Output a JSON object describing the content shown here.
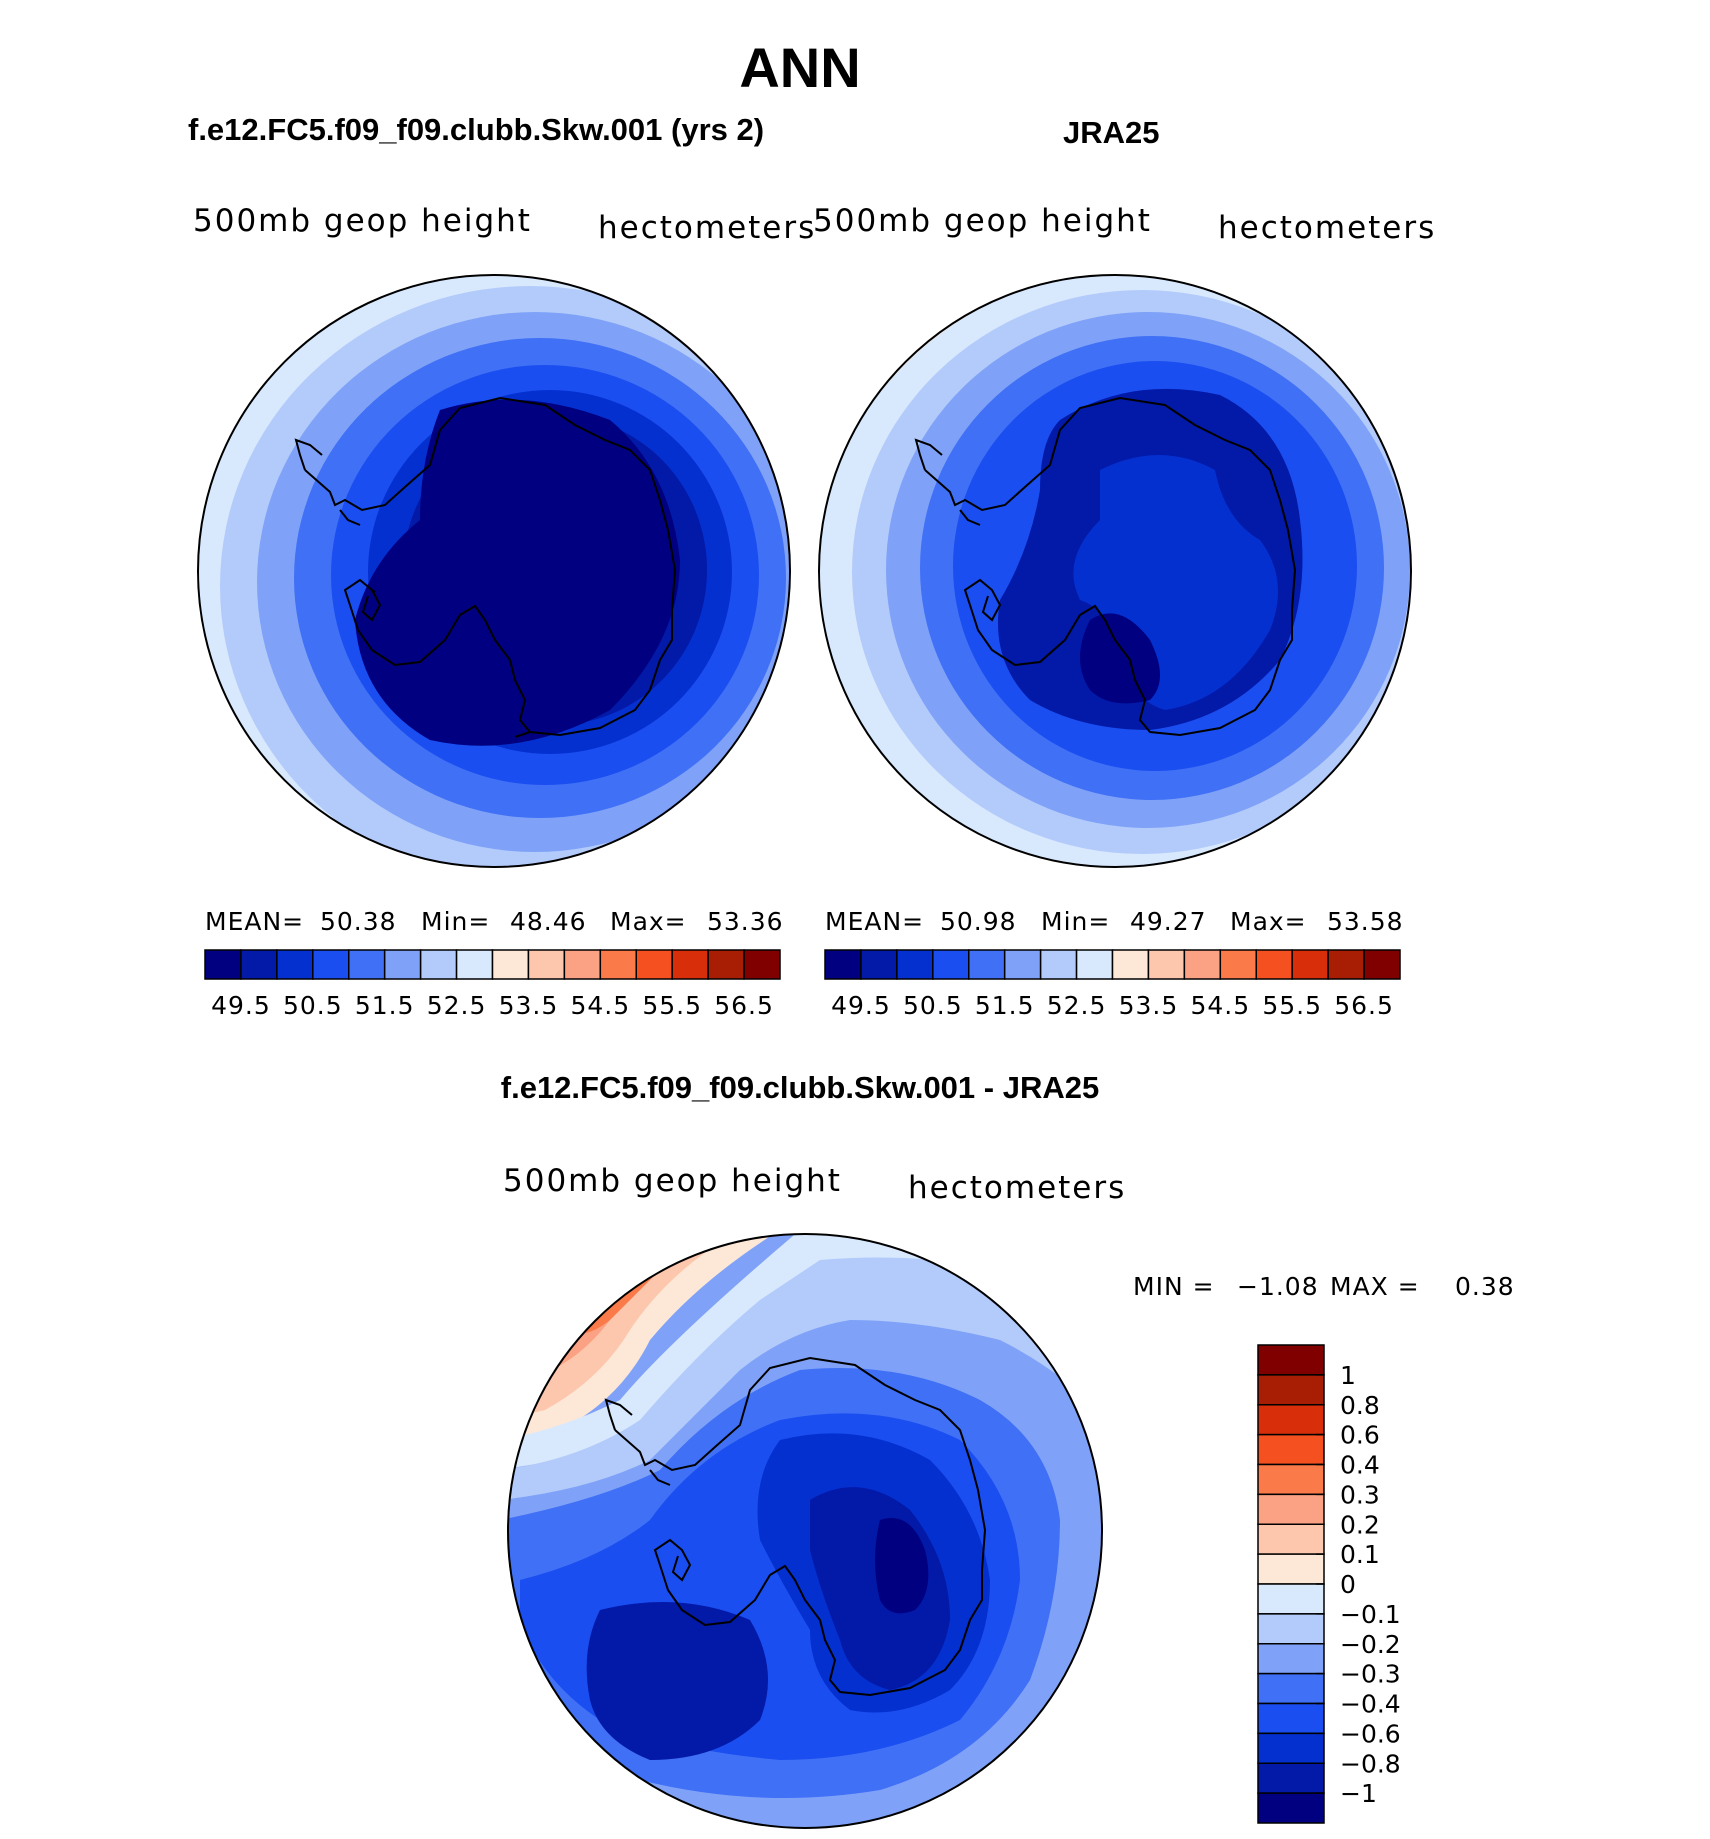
{
  "title": "ANN",
  "panels": [
    {
      "case": "f.e12.FC5.f09_f09.clubb.Skw.001 (yrs 2)",
      "left_label": "500mb geop height",
      "right_label": "hectometers",
      "stats": {
        "mean_label": "MEAN=",
        "mean": "50.38",
        "min_label": "Min=",
        "min": "48.46",
        "max_label": "Max=",
        "max": "53.36"
      }
    },
    {
      "case": "JRA25",
      "left_label": "500mb geop height",
      "right_label": "hectometers",
      "stats": {
        "mean_label": "MEAN=",
        "mean": "50.98",
        "min_label": "Min=",
        "min": "49.27",
        "max_label": "Max=",
        "max": "53.58"
      }
    },
    {
      "case": "f.e12.FC5.f09_f09.clubb.Skw.001 - JRA25",
      "left_label": "500mb geop height",
      "right_label": "hectometers",
      "stats": {
        "min_label": "MIN =",
        "min": "−1.08",
        "max_label": "MAX =",
        "max": "0.38"
      }
    }
  ],
  "abs_colorbar": {
    "colors": [
      "#000080",
      "#0319a8",
      "#0530d0",
      "#1a4ef0",
      "#4070f5",
      "#7fa2f8",
      "#b3cbfb",
      "#d8e8fd",
      "#fde8d8",
      "#fdc7ae",
      "#fca284",
      "#fa7a4a",
      "#f55020",
      "#d92e0a",
      "#a81e05",
      "#800000"
    ],
    "tick_labels": [
      "49.5",
      "50.5",
      "51.5",
      "52.5",
      "53.5",
      "54.5",
      "55.5",
      "56.5"
    ]
  },
  "diff_colorbar": {
    "colors": [
      "#000080",
      "#0319a8",
      "#0530d0",
      "#1a4ef0",
      "#4070f5",
      "#7fa2f8",
      "#b3cbfb",
      "#d8e8fd",
      "#fde8d8",
      "#fdc7ae",
      "#fca284",
      "#fa7a4a",
      "#f55020",
      "#d92e0a",
      "#a81e05",
      "#800000"
    ],
    "tick_labels": [
      "1",
      "0.8",
      "0.6",
      "0.4",
      "0.3",
      "0.2",
      "0.1",
      "0",
      "−0.1",
      "−0.2",
      "−0.3",
      "−0.4",
      "−0.6",
      "−0.8",
      "−1"
    ]
  }
}
